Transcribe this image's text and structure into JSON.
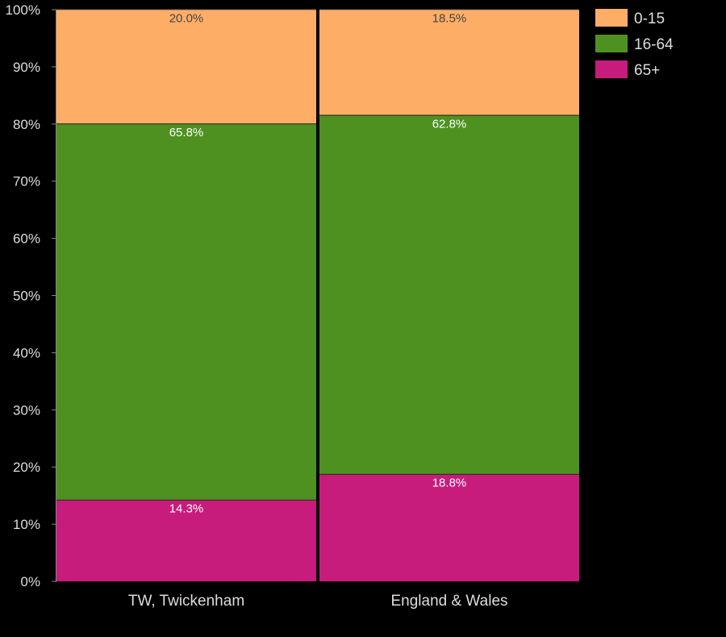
{
  "chart_data": {
    "type": "bar",
    "stacked": true,
    "orientation": "vertical",
    "categories": [
      "TW, Twickenham",
      "England & Wales"
    ],
    "series": [
      {
        "name": "65+",
        "values": [
          14.3,
          18.8
        ],
        "labels": [
          "14.3%",
          "18.8%"
        ],
        "color": "#c71c7c",
        "label_color": "#ffffff"
      },
      {
        "name": "16-64",
        "values": [
          65.8,
          62.8
        ],
        "labels": [
          "65.8%",
          "62.8%"
        ],
        "color": "#4e9120",
        "label_color": "#ffffff"
      },
      {
        "name": "0-15",
        "values": [
          20.0,
          18.5
        ],
        "labels": [
          "20.0%",
          "18.5%"
        ],
        "color": "#fead67",
        "label_color": "#444444"
      }
    ],
    "legend_order": [
      "0-15",
      "16-64",
      "65+"
    ],
    "ylim": [
      0,
      100
    ],
    "yticks": [
      "0%",
      "10%",
      "20%",
      "30%",
      "40%",
      "50%",
      "60%",
      "70%",
      "80%",
      "90%",
      "100%"
    ],
    "legend_position": "top-right",
    "grid": false,
    "title": "",
    "xlabel": "",
    "ylabel": ""
  }
}
